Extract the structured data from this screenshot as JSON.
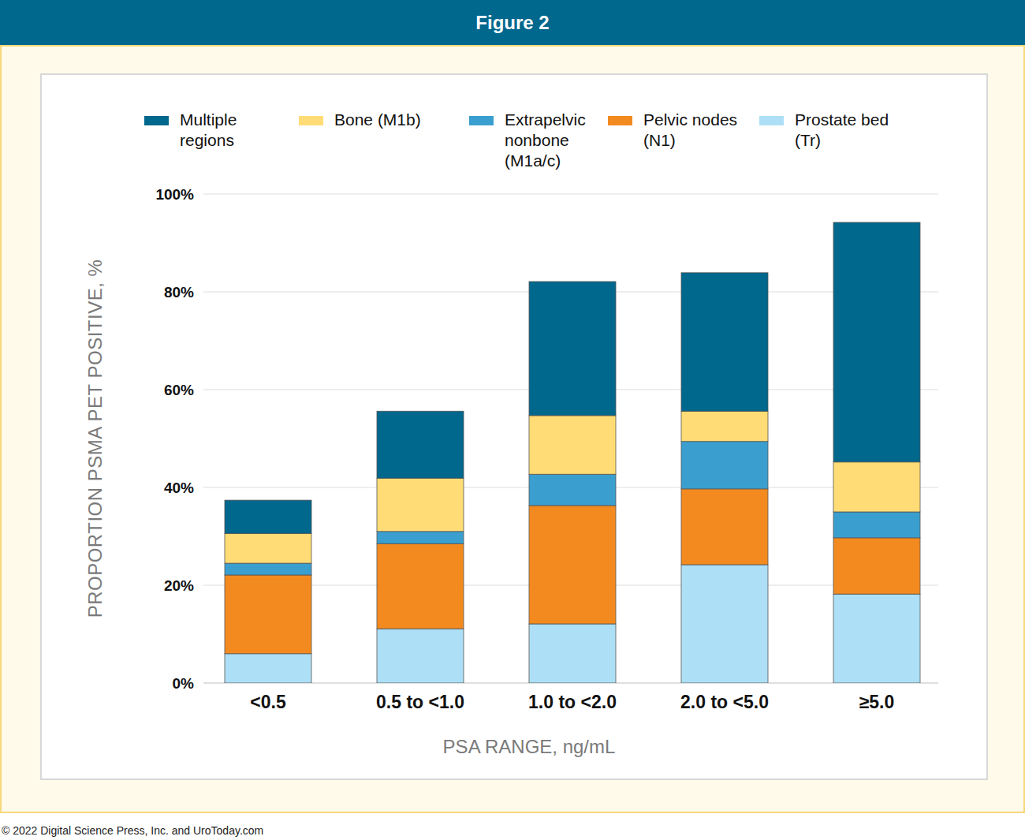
{
  "chart_data": {
    "type": "bar",
    "title": "Figure 2",
    "x_label": "PSA RANGE, ng/mL",
    "y_label": "PROPORTION PSMA PET POSITIVE, %",
    "annotations": [
      "© 2022 Digital Science Press, Inc. and UroToday.com"
    ],
    "categories": [
      "<0.5",
      "0.5 to <1.0",
      "1.0 to <2.0",
      "2.0 to <5.0",
      "≥5.0"
    ],
    "stacked": true,
    "grid": true,
    "legend": "top",
    "ylim": [
      0,
      100
    ],
    "yticks": [
      {
        "value": 0,
        "label": "0%"
      },
      {
        "value": 20,
        "label": "20%"
      },
      {
        "value": 40,
        "label": "40%"
      },
      {
        "value": 60,
        "label": "60%"
      },
      {
        "value": 80,
        "label": "80%"
      },
      {
        "value": 100,
        "label": "100%"
      }
    ],
    "series": [
      {
        "name": "Prostate bed (Tr)",
        "color": "#addff6",
        "values": [
          6.0,
          11.1,
          12.1,
          24.2,
          18.2
        ]
      },
      {
        "name": "Pelvic nodes (N1)",
        "color": "#f38a20",
        "values": [
          16.1,
          17.4,
          24.2,
          15.5,
          11.5
        ]
      },
      {
        "name": "Extrapelvic nonbone (M1a/c)",
        "color": "#3a9fcf",
        "values": [
          2.4,
          2.5,
          6.4,
          9.7,
          5.3
        ]
      },
      {
        "name": "Bone (M1b)",
        "color": "#ffdc75",
        "values": [
          6.1,
          10.9,
          12.0,
          6.2,
          10.2
        ]
      },
      {
        "name": "Multiple regions",
        "color": "#00678d",
        "values": [
          6.8,
          13.7,
          27.4,
          28.3,
          49.0
        ]
      }
    ]
  }
}
